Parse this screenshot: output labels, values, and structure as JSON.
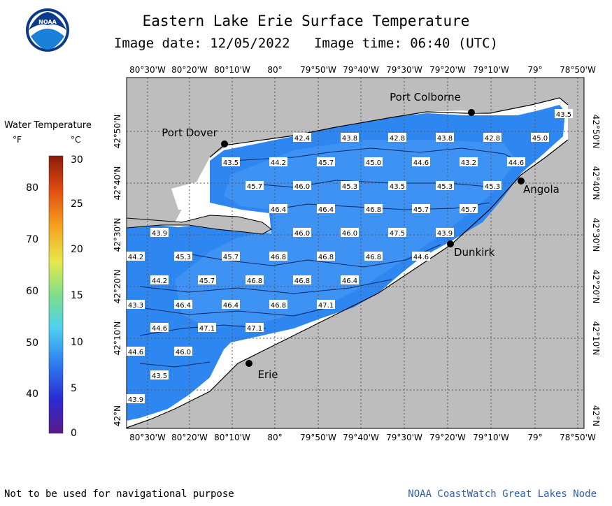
{
  "header": {
    "title": "Eastern Lake Erie Surface Temperature",
    "image_date_label": "Image date:",
    "image_date": "12/05/2022",
    "image_time_label": "Image time:",
    "image_time": "06:40 (UTC)"
  },
  "legend": {
    "title": "Water Temperature",
    "unit_f": "°F",
    "unit_c": "°C",
    "f_ticks": [
      "80",
      "70",
      "60",
      "50",
      "40"
    ],
    "c_ticks": [
      "30",
      "25",
      "20",
      "15",
      "10",
      "5",
      "0"
    ]
  },
  "axes": {
    "lon_labels": [
      "80°30'W",
      "80°20'W",
      "80°10'W",
      "80°",
      "79°50'W",
      "79°40'W",
      "79°30'W",
      "79°20'W",
      "79°10'W",
      "79°",
      "78°50'W"
    ],
    "lat_labels": [
      "42°50'N",
      "42°40'N",
      "42°30'N",
      "42°20'N",
      "42°10'N",
      "42°N"
    ]
  },
  "places": [
    {
      "name": "Port Colborne"
    },
    {
      "name": "Port Dover"
    },
    {
      "name": "Angola"
    },
    {
      "name": "Dunkirk"
    },
    {
      "name": "Erie"
    }
  ],
  "temperatures": [
    "43.5",
    "42.4",
    "43.8",
    "42.8",
    "43.8",
    "42.8",
    "45.0",
    "43.5",
    "44.2",
    "45.7",
    "45.0",
    "44.6",
    "43.2",
    "44.6",
    "45.7",
    "46.0",
    "45.3",
    "43.5",
    "45.3",
    "45.3",
    "46.4",
    "46.4",
    "46.8",
    "45.7",
    "45.7",
    "43.9",
    "46.0",
    "46.0",
    "47.5",
    "43.9",
    "44.2",
    "45.3",
    "45.7",
    "46.8",
    "46.8",
    "46.8",
    "44.6",
    "44.2",
    "45.7",
    "46.8",
    "46.8",
    "46.4",
    "43.3",
    "46.4",
    "46.4",
    "46.8",
    "47.1",
    "44.6",
    "47.1",
    "47.1",
    "44.6",
    "46.0",
    "43.5",
    "43.9"
  ],
  "footer": {
    "disclaimer": "Not to be used for navigational purpose",
    "source": "NOAA CoastWatch Great Lakes Node"
  },
  "colors": {
    "land": "#bdbdbd",
    "water_main": "#2e86f0",
    "water_light": "#4a9cf5",
    "no_data": "#ffffff",
    "credit": "#2d5fb3"
  },
  "logo_text": "NOAA"
}
